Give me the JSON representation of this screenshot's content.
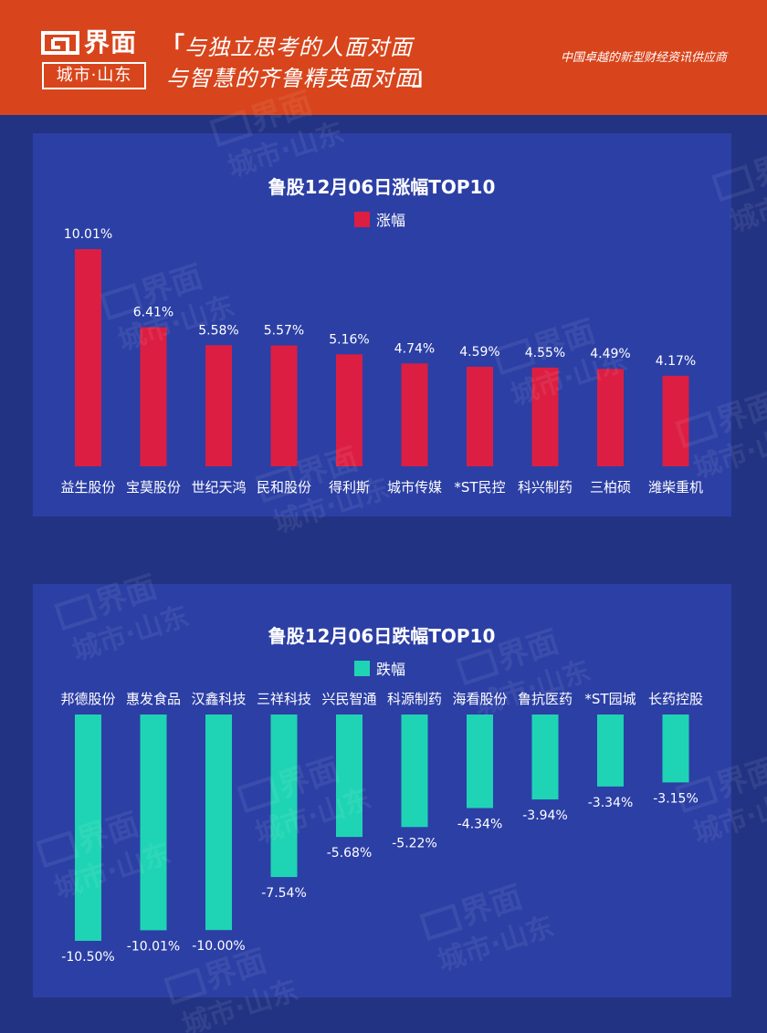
{
  "header": {
    "logo_name": "界面",
    "logo_sub": "城市·山东",
    "slogan_open": "「",
    "slogan_line1": "与独立思考的人面对面",
    "slogan_line2": "与智慧的齐鲁精英面对面",
    "slogan_close": "」",
    "tagline": "中国卓越的新型财经资讯供应商"
  },
  "watermark": {
    "text1": "界面",
    "text2": "城市·山东"
  },
  "colors": {
    "header_bg": "#d8451c",
    "page_bg": "#233383",
    "panel_bg": "#2c3fa5",
    "gain_bar": "#dc1e43",
    "loss_bar": "#1fd4b4"
  },
  "chart_data": [
    {
      "type": "bar",
      "title": "鲁股12月06日涨幅TOP10",
      "legend": "涨幅",
      "legend_position": "top",
      "categories": [
        "益生股份",
        "宝莫股份",
        "世纪天鸿",
        "民和股份",
        "得利斯",
        "城市传媒",
        "*ST民控",
        "科兴制药",
        "三柏硕",
        "潍柴重机"
      ],
      "values": [
        10.01,
        6.41,
        5.58,
        5.57,
        5.16,
        4.74,
        4.59,
        4.55,
        4.49,
        4.17
      ],
      "labels": [
        "10.01%",
        "6.41%",
        "5.58%",
        "5.57%",
        "5.16%",
        "4.74%",
        "4.59%",
        "4.55%",
        "4.49%",
        "4.17%"
      ],
      "ylim": [
        0,
        10.01
      ],
      "grid": false
    },
    {
      "type": "bar",
      "title": "鲁股12月06日跌幅TOP10",
      "legend": "跌幅",
      "legend_position": "top",
      "categories": [
        "邦德股份",
        "惠发食品",
        "汉鑫科技",
        "三祥科技",
        "兴民智通",
        "科源制药",
        "海看股份",
        "鲁抗医药",
        "*ST园城",
        "长药控股"
      ],
      "values": [
        -10.5,
        -10.01,
        -10.0,
        -7.54,
        -5.68,
        -5.22,
        -4.34,
        -3.94,
        -3.34,
        -3.15
      ],
      "labels": [
        "-10.50%",
        "-10.01%",
        "-10.00%",
        "-7.54%",
        "-5.68%",
        "-5.22%",
        "-4.34%",
        "-3.94%",
        "-3.34%",
        "-3.15%"
      ],
      "ylim": [
        -10.5,
        0
      ],
      "grid": false
    }
  ]
}
